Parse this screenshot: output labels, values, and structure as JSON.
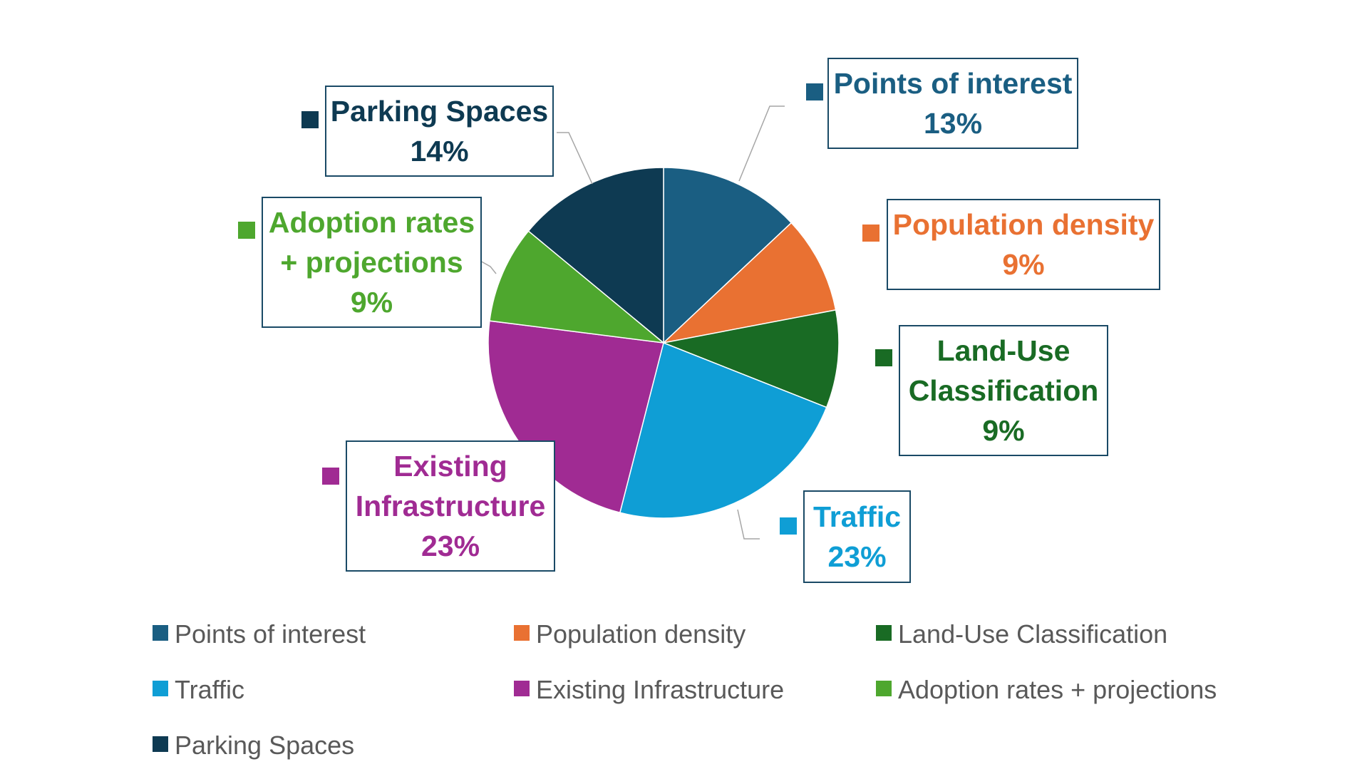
{
  "chart_data": {
    "type": "pie",
    "title": "",
    "legend_position": "bottom",
    "series": [
      {
        "name": "Points of interest",
        "value": 13,
        "label": "13%",
        "color": "#1a5e82"
      },
      {
        "name": "Population density",
        "value": 9,
        "label": "9%",
        "color": "#e97132"
      },
      {
        "name": "Land-Use Classification",
        "value": 9,
        "label": "9%",
        "color": "#196b24"
      },
      {
        "name": "Traffic",
        "value": 23,
        "label": "23%",
        "color": "#0f9ed5"
      },
      {
        "name": "Existing Infrastructure",
        "value": 23,
        "label": "23%",
        "color": "#a02b93"
      },
      {
        "name": "Adoption rates + projections",
        "value": 9,
        "label": "9%",
        "color": "#4ea72e"
      },
      {
        "name": "Parking Spaces",
        "value": 14,
        "label": "14%",
        "color": "#0e3a52"
      }
    ],
    "callout_lines": [
      [
        "Points of interest"
      ],
      [
        "Population density"
      ],
      [
        "Land-Use",
        "Classification"
      ],
      [
        "Traffic"
      ],
      [
        "Existing",
        "Infrastructure"
      ],
      [
        "Adoption rates",
        "+ projections"
      ],
      [
        "Parking Spaces"
      ]
    ]
  }
}
